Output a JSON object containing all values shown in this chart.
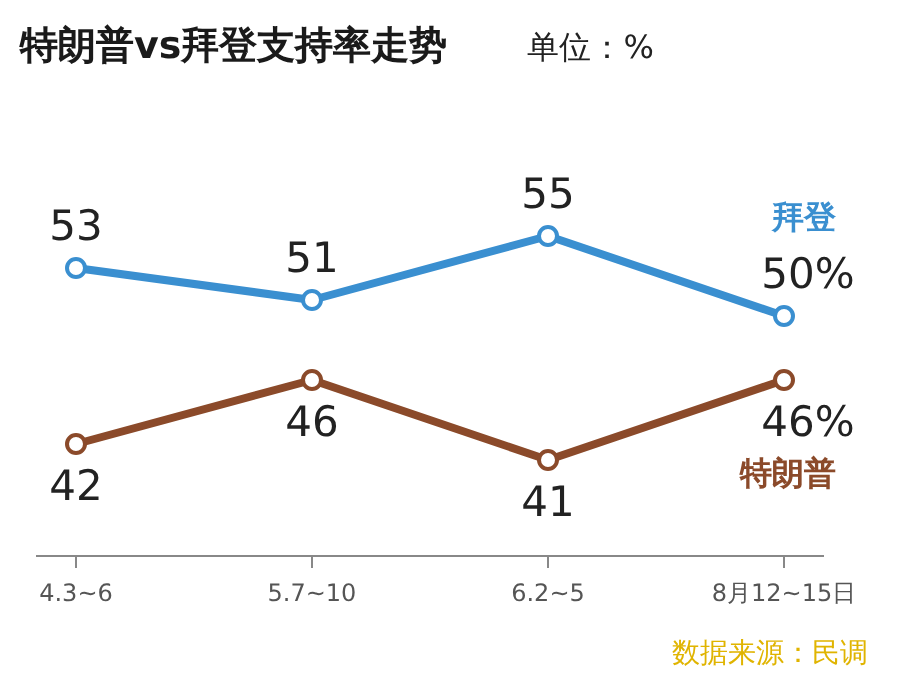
{
  "chart_data": {
    "type": "line",
    "title": "特朗普vs拜登支持率走势",
    "subtitle": "单位：%",
    "categories": [
      "4.3~6",
      "5.7~10",
      "6.2~5",
      "8月12~15日"
    ],
    "series": [
      {
        "name": "拜登",
        "color": "#3a8fd0",
        "values": [
          53,
          51,
          55,
          50
        ],
        "value_labels": [
          "53",
          "51",
          "55",
          "50%"
        ]
      },
      {
        "name": "特朗普",
        "color": "#8b4a2a",
        "values": [
          42,
          46,
          41,
          46
        ],
        "value_labels": [
          "42",
          "46",
          "41",
          "46%"
        ]
      }
    ],
    "marker": "circle",
    "line_style": "solid",
    "grid": false,
    "tick_labels": "x",
    "annotations": [
      "数据来源：民调"
    ]
  }
}
